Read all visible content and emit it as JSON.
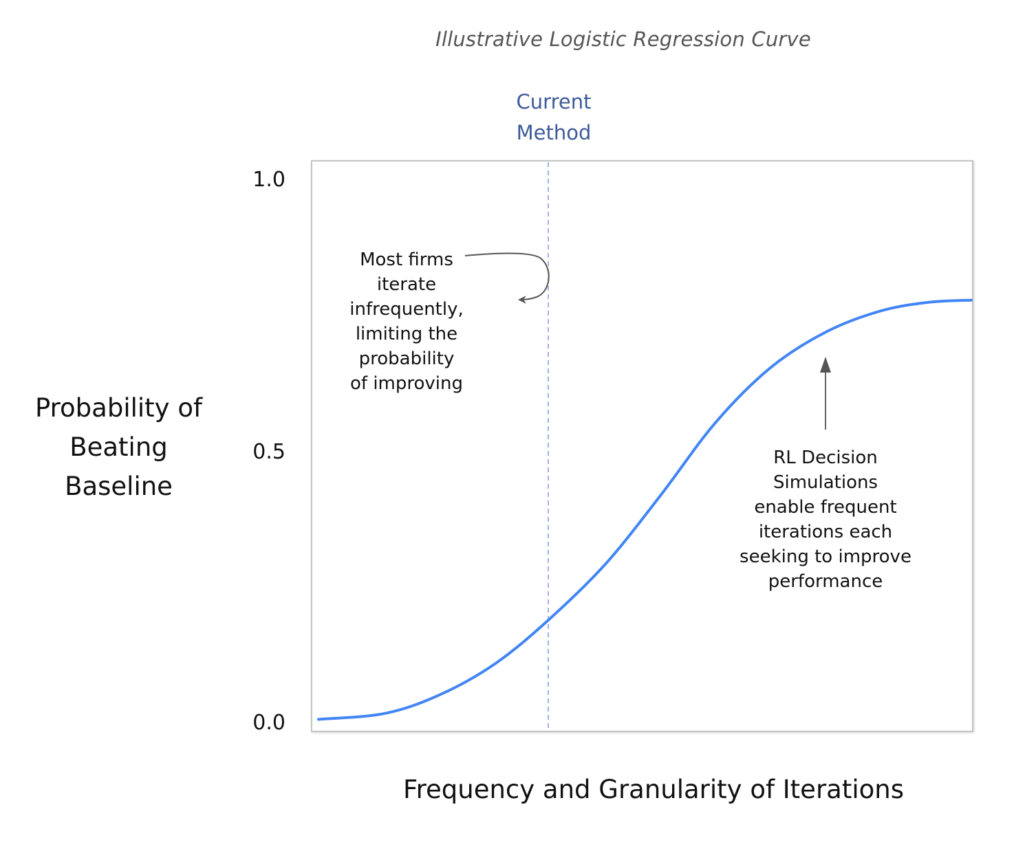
{
  "chart_data": {
    "type": "line",
    "title": "Illustrative Logistic Regression Curve",
    "xlabel": "Frequency and Granularity of Iterations",
    "ylabel": "Probability of Beating Baseline",
    "ylabel_lines": [
      "Probability of",
      "Beating",
      "Baseline"
    ],
    "ylim": [
      0.0,
      1.0
    ],
    "xlim": [
      0.0,
      1.0
    ],
    "y_ticks": [
      "1.0",
      "0.5",
      "0.0"
    ],
    "y_tick_values": [
      1.0,
      0.5,
      0.0
    ],
    "x_ticks": [],
    "grid": false,
    "legend": "none",
    "series": [
      {
        "name": "Logistic curve",
        "color": "#4285f4",
        "x": [
          0.0,
          0.102,
          0.187,
          0.271,
          0.352,
          0.44,
          0.524,
          0.608,
          0.692,
          0.777,
          0.861,
          0.935,
          1.0
        ],
        "y": [
          0.007,
          0.018,
          0.053,
          0.11,
          0.19,
          0.294,
          0.42,
          0.554,
          0.655,
          0.721,
          0.76,
          0.776,
          0.78
        ]
      }
    ],
    "reference_line": {
      "x": 0.352,
      "style": "dashed",
      "color": "#9db4e0",
      "label_lines": [
        "Current",
        "Method"
      ]
    },
    "annotations": [
      {
        "id": "left",
        "lines": [
          "Most firms",
          "iterate",
          "infrequently,",
          "limiting the",
          "probability",
          "of improving"
        ],
        "arrow": "curved"
      },
      {
        "id": "right",
        "lines": [
          "RL Decision",
          "Simulations",
          "enable frequent",
          "iterations each",
          "seeking to improve",
          "performance"
        ],
        "arrow": "up"
      }
    ]
  },
  "colors": {
    "curve": "#4285f4",
    "reference_line": "#9db4e0",
    "reference_label": "#3d5a99",
    "title": "#555555",
    "plot_border": "#c4c4c4",
    "arrow": "#555555"
  }
}
